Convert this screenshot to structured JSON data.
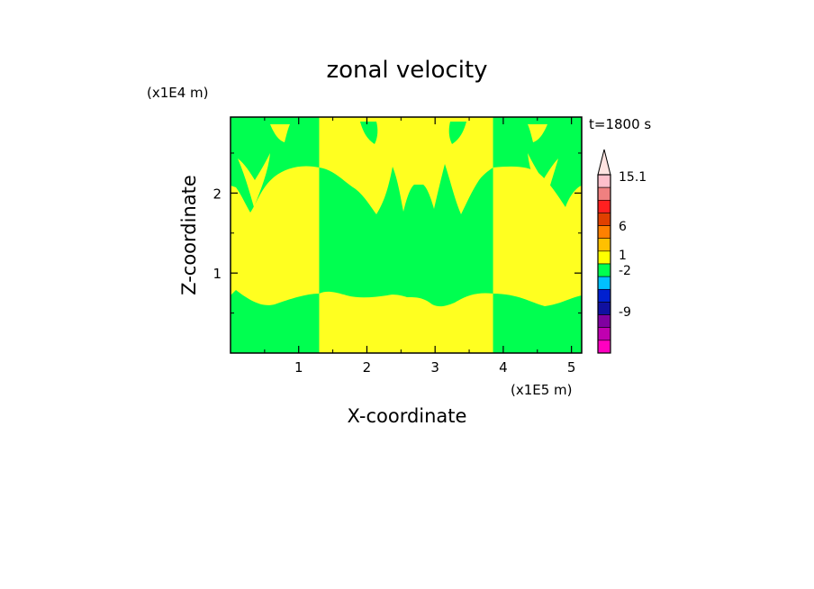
{
  "chart_data": {
    "type": "heatmap",
    "title": "zonal velocity",
    "time_label": "t=1800 s",
    "xlabel": "X-coordinate",
    "ylabel": "Z-coordinate",
    "x_scale_label": "(x1E5 m)",
    "y_scale_label": "(x1E4 m)",
    "xlim": [
      0,
      5.15
    ],
    "ylim": [
      0,
      2.95
    ],
    "x_ticks": [
      1,
      2,
      3,
      4,
      5
    ],
    "x_tick_labels": [
      "1",
      "2",
      "3",
      "4",
      "5"
    ],
    "y_ticks": [
      1,
      2
    ],
    "y_tick_labels": [
      "1",
      "2"
    ],
    "regions": [
      {
        "x": [
          0,
          1.3
        ],
        "value": "low-level jet pattern"
      },
      {
        "x": [
          1.3,
          3.85
        ],
        "value": "reversed pattern"
      },
      {
        "x": [
          3.85,
          5.15
        ],
        "value": "low-level jet pattern"
      }
    ],
    "colorbar": {
      "levels": [
        "15.1",
        "6",
        "1",
        "-2",
        "-9"
      ],
      "colors": [
        "#ffc0cb",
        "#f08080",
        "#ff2020",
        "#e04000",
        "#ff8000",
        "#ffc000",
        "#ffff00",
        "#00ff50",
        "#00c0ff",
        "#0020d0",
        "#1010a0",
        "#8000a0",
        "#c000b0",
        "#ff00c0"
      ]
    },
    "fill_colors": {
      "positive": "#ffff20",
      "negative": "#00ff50"
    }
  }
}
